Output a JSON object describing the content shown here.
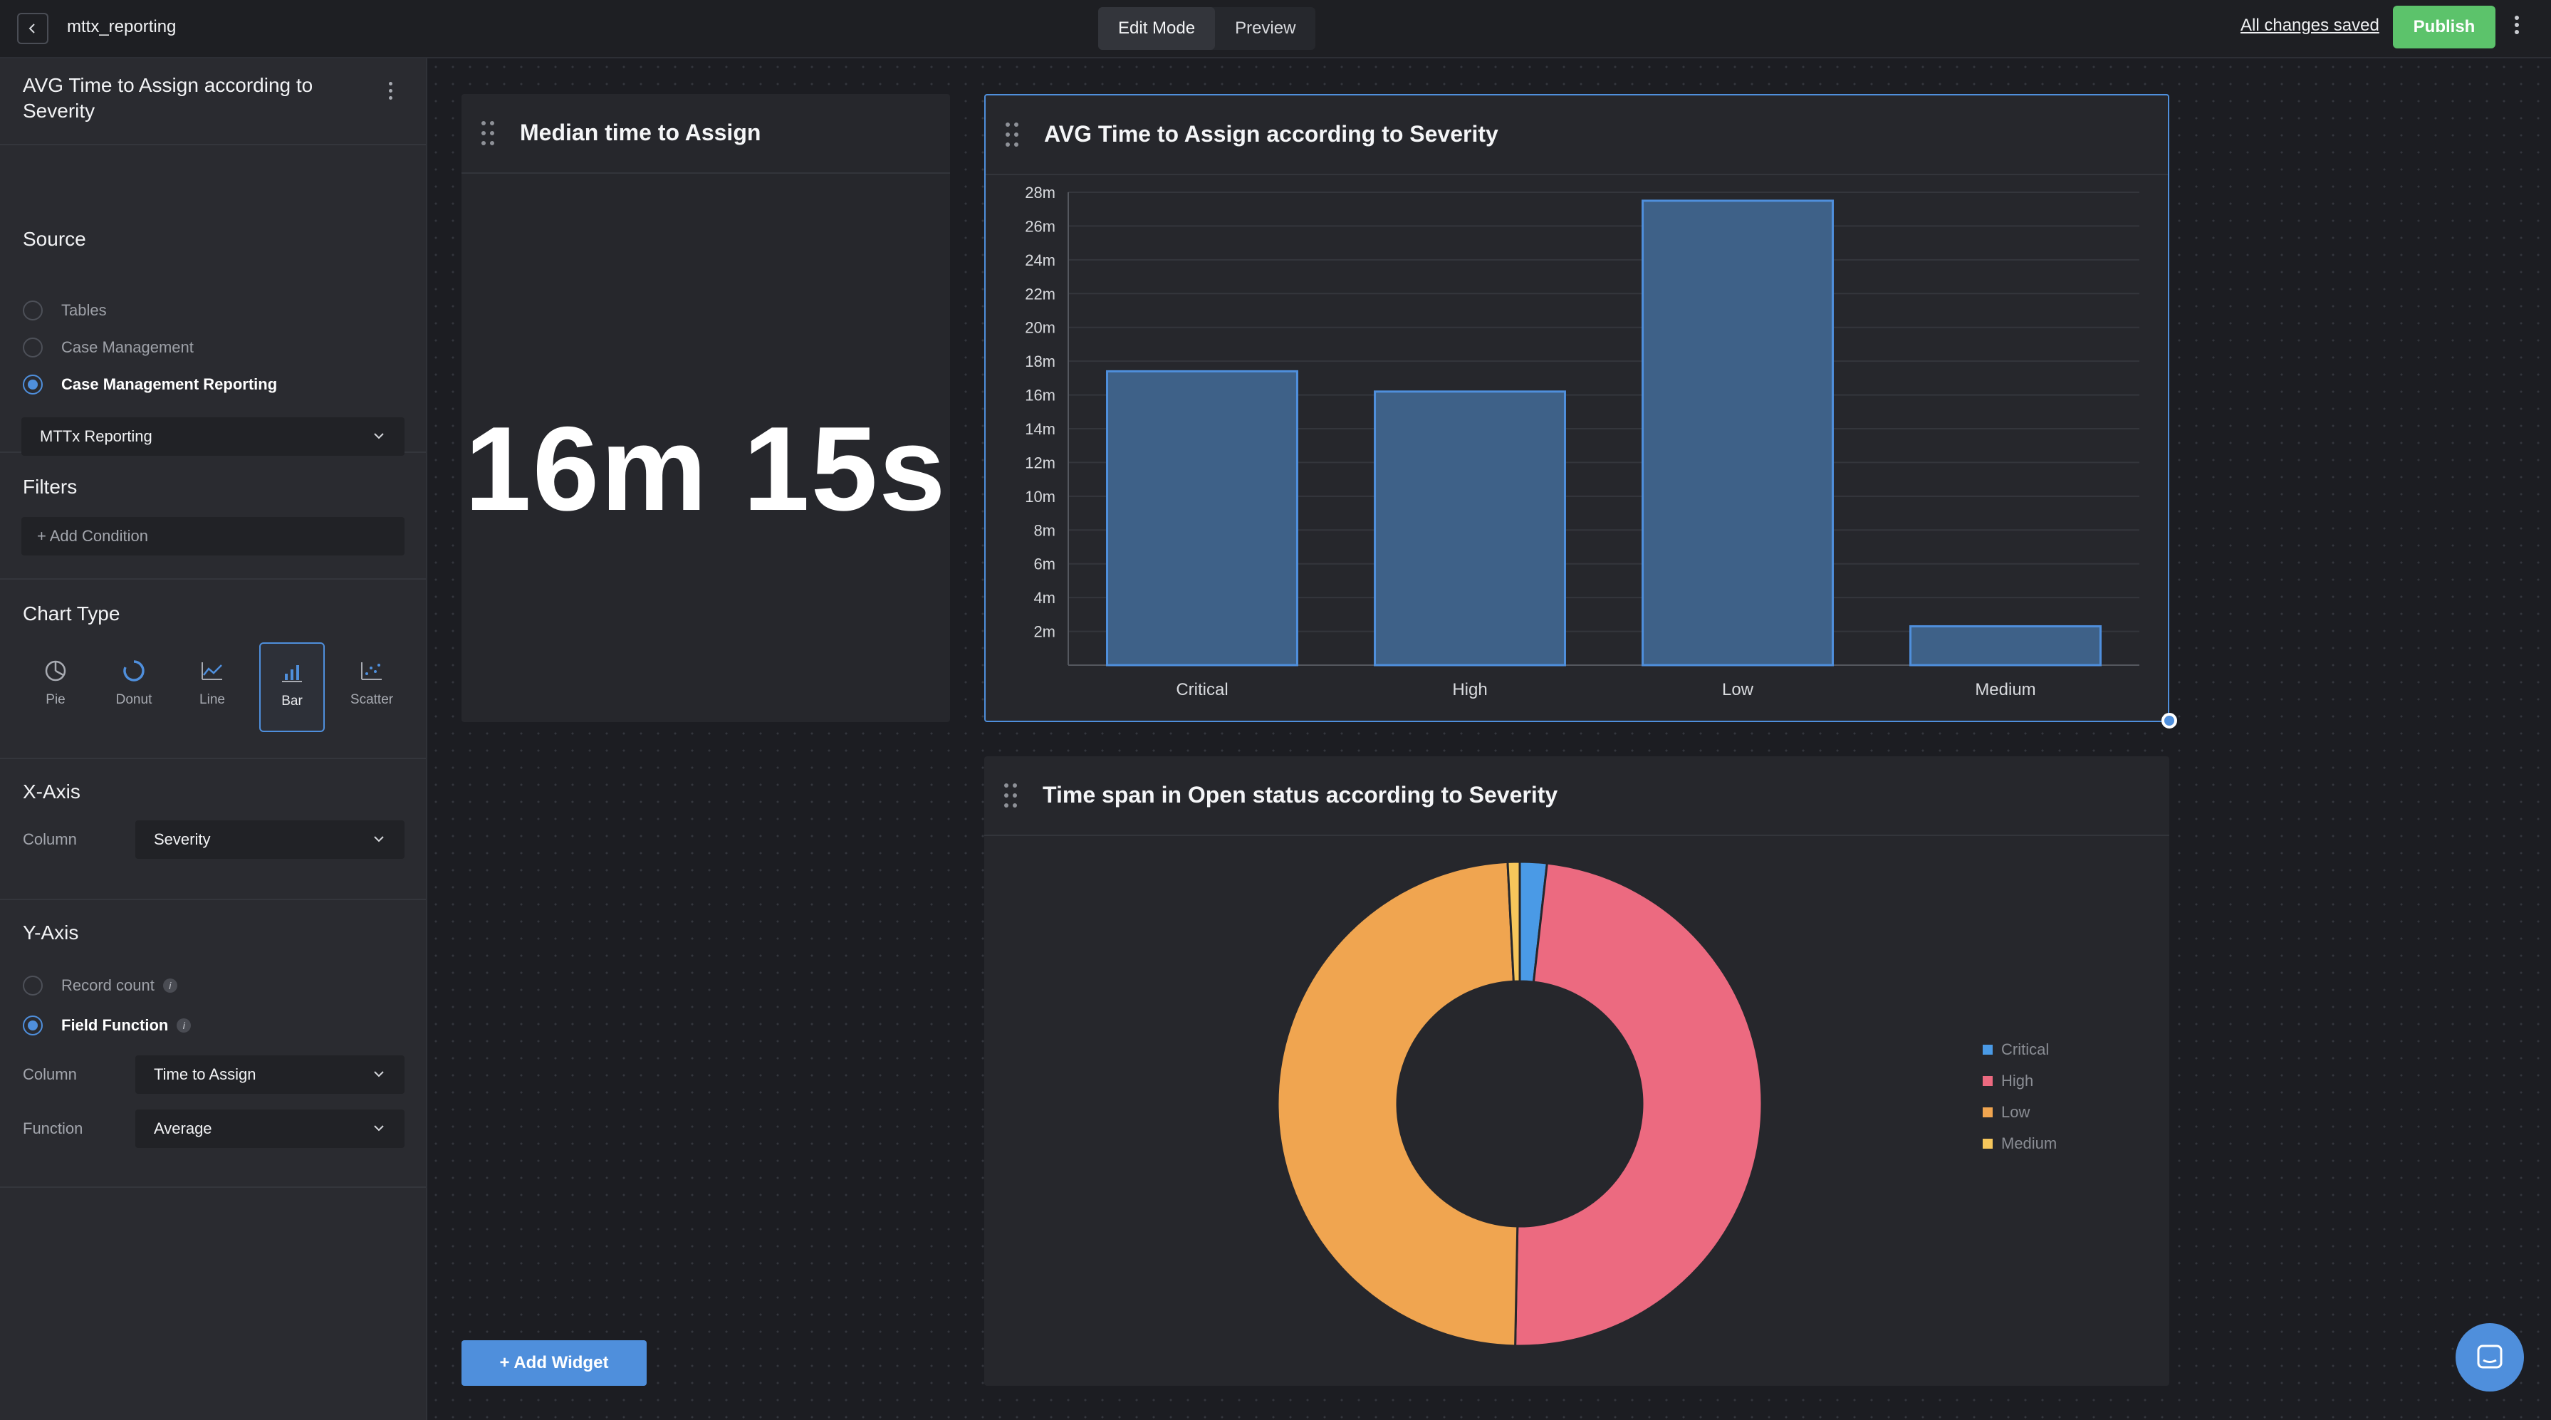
{
  "topbar": {
    "app_name": "mttx_reporting",
    "modes": [
      "Edit Mode",
      "Preview"
    ],
    "active_mode": "Edit Mode",
    "saved_status": "All changes saved",
    "publish_label": "Publish"
  },
  "sidebar": {
    "title": "AVG Time to Assign according to Severity",
    "source": {
      "label": "Source",
      "options": [
        "Tables",
        "Case Management",
        "Case Management Reporting"
      ],
      "selected": "Case Management Reporting",
      "dataset": "MTTx Reporting"
    },
    "filters": {
      "label": "Filters",
      "add_condition": "+ Add Condition"
    },
    "chart_type": {
      "label": "Chart Type",
      "options": [
        "Pie",
        "Donut",
        "Line",
        "Bar",
        "Scatter"
      ],
      "selected": "Bar"
    },
    "x_axis": {
      "label": "X-Axis",
      "column_label": "Column",
      "column_value": "Severity"
    },
    "y_axis": {
      "label": "Y-Axis",
      "options": [
        "Record count",
        "Field Function"
      ],
      "selected": "Field Function",
      "column_label": "Column",
      "column_value": "Time to Assign",
      "function_label": "Function",
      "function_value": "Average"
    }
  },
  "widgets": {
    "median": {
      "title": "Median time to Assign",
      "value": "16m 15s"
    },
    "avg_bar": {
      "title": "AVG Time to Assign according to Severity"
    },
    "donut": {
      "title": "Time span in Open status according to Severity"
    }
  },
  "canvas": {
    "add_widget": "+ Add Widget"
  },
  "colors": {
    "accent": "#4f8fdc",
    "publish": "#5cc36b",
    "bar_fill": "#3e6188",
    "bar_stroke": "#4f8fdc",
    "critical": "#4a9ae6",
    "high": "#ec6a80",
    "low": "#f0a550",
    "medium": "#f6c65b"
  },
  "chart_data": [
    {
      "type": "bar",
      "categories": [
        "Critical",
        "High",
        "Low",
        "Medium"
      ],
      "values": [
        17.4,
        16.2,
        27.5,
        2.3
      ],
      "ylim": [
        0,
        28
      ],
      "yticks": [
        "2m",
        "4m",
        "6m",
        "8m",
        "10m",
        "12m",
        "14m",
        "16m",
        "18m",
        "20m",
        "22m",
        "24m",
        "26m",
        "28m"
      ],
      "ytick_values": [
        2,
        4,
        6,
        8,
        10,
        12,
        14,
        16,
        18,
        20,
        22,
        24,
        26,
        28
      ],
      "grid": true
    },
    {
      "type": "pie",
      "donut": true,
      "categories": [
        "Critical",
        "High",
        "Low",
        "Medium"
      ],
      "values": [
        1.8,
        48.5,
        48.9,
        0.8
      ],
      "legend": "right"
    }
  ]
}
